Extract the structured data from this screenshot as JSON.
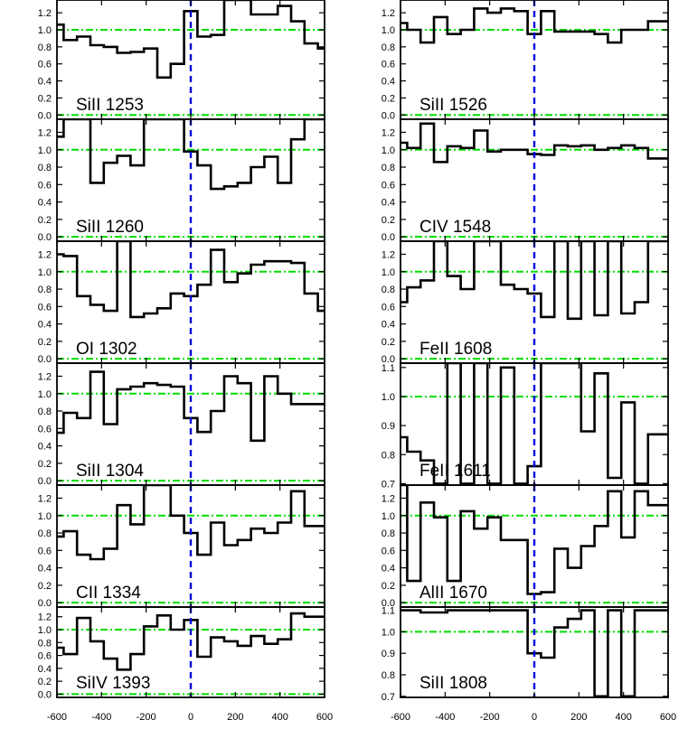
{
  "figure": {
    "xlim": [
      -600,
      600
    ],
    "x_ticks": [
      -600,
      -400,
      -200,
      0,
      200,
      400,
      600
    ],
    "continuum_color": "#00dd00",
    "zero_line_color": "#0000dd",
    "histogram_color": "#000000"
  },
  "chart_data": [
    {
      "type": "line",
      "drawstyle": "steps-mid",
      "label": "SiII 1253",
      "ylim": [
        -0.05,
        1.35
      ],
      "y_ticks": [
        "0.0",
        "0.2",
        "0.4",
        "0.6",
        "0.8",
        "1.0",
        "1.2"
      ],
      "x": [
        -600,
        -540,
        -480,
        -420,
        -360,
        -300,
        -240,
        -180,
        -120,
        -60,
        0,
        60,
        120,
        180,
        240,
        300,
        360,
        420,
        480,
        540,
        600
      ],
      "y": [
        1.06,
        0.88,
        0.92,
        0.82,
        0.8,
        0.73,
        0.74,
        0.78,
        0.44,
        0.6,
        1.22,
        0.92,
        0.94,
        1.4,
        1.4,
        1.18,
        1.18,
        1.28,
        1.1,
        0.84,
        0.78
      ]
    },
    {
      "type": "line",
      "drawstyle": "steps-mid",
      "label": "SiII 1260",
      "ylim": [
        -0.05,
        1.35
      ],
      "y_ticks": [
        "0.0",
        "0.2",
        "0.4",
        "0.6",
        "0.8",
        "1.0",
        "1.2"
      ],
      "x": [
        -600,
        -540,
        -480,
        -420,
        -360,
        -300,
        -240,
        -180,
        -120,
        -60,
        0,
        60,
        120,
        180,
        240,
        300,
        360,
        420,
        480,
        540,
        600
      ],
      "y": [
        1.15,
        1.35,
        1.35,
        0.62,
        0.85,
        0.93,
        0.82,
        1.35,
        1.35,
        1.35,
        0.98,
        0.82,
        0.55,
        0.58,
        0.62,
        0.8,
        0.92,
        0.62,
        1.12,
        1.35,
        1.35
      ]
    },
    {
      "type": "line",
      "drawstyle": "steps-mid",
      "label": "OI 1302",
      "ylim": [
        -0.05,
        1.35
      ],
      "y_ticks": [
        "0.0",
        "0.2",
        "0.4",
        "0.6",
        "0.8",
        "1.0",
        "1.2"
      ],
      "x": [
        -600,
        -540,
        -480,
        -420,
        -360,
        -300,
        -240,
        -180,
        -120,
        -60,
        0,
        60,
        120,
        180,
        240,
        300,
        360,
        420,
        480,
        540,
        600
      ],
      "y": [
        1.2,
        1.18,
        0.72,
        0.62,
        0.55,
        1.35,
        0.48,
        0.52,
        0.58,
        0.75,
        0.72,
        0.85,
        1.25,
        0.88,
        0.98,
        1.08,
        1.12,
        1.12,
        1.1,
        0.75,
        0.55
      ]
    },
    {
      "type": "line",
      "drawstyle": "steps-mid",
      "label": "SiII 1304",
      "ylim": [
        -0.05,
        1.35
      ],
      "y_ticks": [
        "0.0",
        "0.2",
        "0.4",
        "0.6",
        "0.8",
        "1.0",
        "1.2"
      ],
      "x": [
        -600,
        -540,
        -480,
        -420,
        -360,
        -300,
        -240,
        -180,
        -120,
        -60,
        0,
        60,
        120,
        180,
        240,
        300,
        360,
        420,
        480,
        540,
        600
      ],
      "y": [
        0.55,
        0.78,
        0.72,
        1.25,
        0.65,
        1.05,
        1.08,
        1.12,
        1.1,
        1.08,
        0.72,
        0.56,
        0.8,
        1.2,
        1.12,
        0.46,
        1.2,
        1.0,
        0.88,
        0.88,
        0.88
      ]
    },
    {
      "type": "line",
      "drawstyle": "steps-mid",
      "label": "CII 1334",
      "ylim": [
        -0.05,
        1.35
      ],
      "y_ticks": [
        "0.0",
        "0.2",
        "0.4",
        "0.6",
        "0.8",
        "1.0",
        "1.2"
      ],
      "x": [
        -600,
        -540,
        -480,
        -420,
        -360,
        -300,
        -240,
        -180,
        -120,
        -60,
        0,
        60,
        120,
        180,
        240,
        300,
        360,
        420,
        480,
        540,
        600
      ],
      "y": [
        0.76,
        0.82,
        0.55,
        0.5,
        0.62,
        1.12,
        0.9,
        1.35,
        1.35,
        1.0,
        0.8,
        0.55,
        0.92,
        0.66,
        0.72,
        0.85,
        0.8,
        0.92,
        1.28,
        0.88,
        0.88
      ]
    },
    {
      "type": "line",
      "drawstyle": "steps-mid",
      "label": "SiIV 1393",
      "ylim": [
        -0.05,
        1.35
      ],
      "y_ticks": [
        "0.0",
        "0.2",
        "0.4",
        "0.6",
        "0.8",
        "1.0",
        "1.2"
      ],
      "x": [
        -600,
        -540,
        -480,
        -420,
        -360,
        -300,
        -240,
        -180,
        -120,
        -60,
        0,
        60,
        120,
        180,
        240,
        300,
        360,
        420,
        480,
        540,
        600
      ],
      "y": [
        0.72,
        0.62,
        1.18,
        0.82,
        0.55,
        0.38,
        0.62,
        1.05,
        1.22,
        1.0,
        1.15,
        0.58,
        0.88,
        0.82,
        0.75,
        0.9,
        0.78,
        0.85,
        1.25,
        1.2,
        1.2
      ]
    },
    {
      "type": "line",
      "drawstyle": "steps-mid",
      "label": "SiII 1526",
      "ylim": [
        -0.05,
        1.35
      ],
      "y_ticks": [
        "0.0",
        "0.2",
        "0.4",
        "0.6",
        "0.8",
        "1.0",
        "1.2"
      ],
      "x": [
        -600,
        -540,
        -480,
        -420,
        -360,
        -300,
        -240,
        -180,
        -120,
        -60,
        0,
        60,
        120,
        180,
        240,
        300,
        360,
        420,
        480,
        540,
        600
      ],
      "y": [
        1.08,
        1.0,
        0.85,
        1.15,
        0.95,
        1.0,
        1.25,
        1.2,
        1.25,
        1.22,
        0.95,
        1.22,
        0.98,
        0.98,
        0.98,
        0.95,
        0.85,
        1.0,
        1.0,
        1.1,
        1.1
      ]
    },
    {
      "type": "line",
      "drawstyle": "steps-mid",
      "label": "CIV 1548",
      "ylim": [
        -0.05,
        1.35
      ],
      "y_ticks": [
        "0.0",
        "0.2",
        "0.4",
        "0.6",
        "0.8",
        "1.0",
        "1.2"
      ],
      "x": [
        -600,
        -540,
        -480,
        -420,
        -360,
        -300,
        -240,
        -180,
        -120,
        -60,
        0,
        60,
        120,
        180,
        240,
        300,
        360,
        420,
        480,
        540,
        600
      ],
      "y": [
        1.08,
        1.02,
        1.3,
        0.86,
        1.04,
        1.02,
        1.22,
        0.98,
        1.0,
        1.0,
        0.95,
        0.94,
        1.05,
        1.04,
        1.05,
        1.0,
        1.02,
        1.05,
        1.02,
        0.9,
        0.9
      ]
    },
    {
      "type": "line",
      "drawstyle": "steps-mid",
      "label": "FeII 1608",
      "ylim": [
        -0.05,
        1.35
      ],
      "y_ticks": [
        "0.0",
        "0.2",
        "0.4",
        "0.6",
        "0.8",
        "1.0",
        "1.2"
      ],
      "x": [
        -600,
        -540,
        -480,
        -420,
        -360,
        -300,
        -240,
        -180,
        -120,
        -60,
        0,
        60,
        120,
        180,
        240,
        300,
        360,
        420,
        480,
        540,
        600
      ],
      "y": [
        0.65,
        0.82,
        0.9,
        1.35,
        0.95,
        0.8,
        1.35,
        1.35,
        0.85,
        0.8,
        0.75,
        0.48,
        1.35,
        0.46,
        1.35,
        0.5,
        1.35,
        0.52,
        0.65,
        1.35,
        1.35
      ]
    },
    {
      "type": "line",
      "drawstyle": "steps-mid",
      "label": "FeII 1611",
      "ylim": [
        0.695,
        1.115
      ],
      "y_ticks": [
        "0.7",
        "0.8",
        "0.9",
        "1.0",
        "1.1"
      ],
      "x": [
        -600,
        -540,
        -480,
        -420,
        -360,
        -300,
        -240,
        -180,
        -120,
        -60,
        0,
        60,
        120,
        180,
        240,
        300,
        360,
        420,
        480,
        540,
        600
      ],
      "y": [
        0.86,
        0.81,
        0.78,
        0.7,
        1.12,
        0.7,
        1.12,
        0.7,
        1.1,
        0.7,
        0.76,
        1.12,
        1.12,
        1.12,
        0.88,
        1.08,
        0.72,
        0.98,
        0.7,
        0.87,
        0.87
      ]
    },
    {
      "type": "line",
      "drawstyle": "steps-mid",
      "label": "AlII 1670",
      "ylim": [
        -0.05,
        1.35
      ],
      "y_ticks": [
        "0.0",
        "0.2",
        "0.4",
        "0.6",
        "0.8",
        "1.0",
        "1.2"
      ],
      "x": [
        -600,
        -540,
        -480,
        -420,
        -360,
        -300,
        -240,
        -180,
        -120,
        -60,
        0,
        60,
        120,
        180,
        240,
        300,
        360,
        420,
        480,
        540,
        600
      ],
      "y": [
        1.35,
        0.25,
        1.15,
        0.98,
        0.25,
        1.05,
        0.85,
        0.98,
        0.72,
        0.72,
        0.1,
        0.12,
        0.62,
        0.4,
        0.65,
        0.88,
        1.28,
        0.75,
        1.28,
        1.12,
        1.12
      ]
    },
    {
      "type": "line",
      "drawstyle": "steps-mid",
      "label": "SiII 1808",
      "ylim": [
        0.695,
        1.115
      ],
      "y_ticks": [
        "0.7",
        "0.8",
        "0.9",
        "1.0",
        "1.1"
      ],
      "x": [
        -600,
        -540,
        -480,
        -420,
        -360,
        -300,
        -240,
        -180,
        -120,
        -60,
        0,
        60,
        120,
        180,
        240,
        300,
        360,
        420,
        480,
        540,
        600
      ],
      "y": [
        1.1,
        1.1,
        1.09,
        1.09,
        1.1,
        1.1,
        1.1,
        1.1,
        1.1,
        1.1,
        0.9,
        0.88,
        1.02,
        1.06,
        1.1,
        0.7,
        1.1,
        0.7,
        1.1,
        1.1,
        1.1
      ]
    }
  ]
}
